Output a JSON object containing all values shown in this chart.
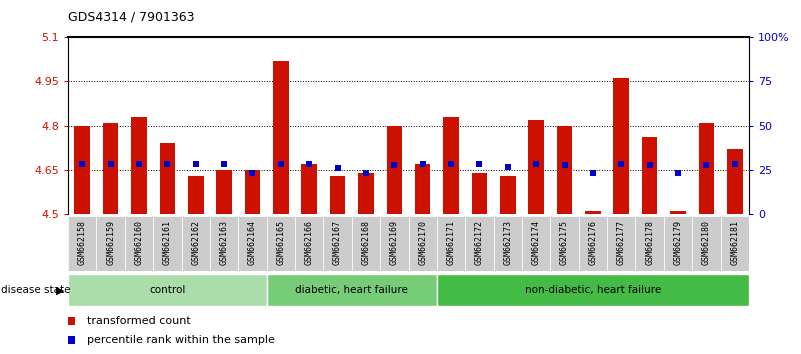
{
  "title": "GDS4314 / 7901363",
  "samples": [
    "GSM662158",
    "GSM662159",
    "GSM662160",
    "GSM662161",
    "GSM662162",
    "GSM662163",
    "GSM662164",
    "GSM662165",
    "GSM662166",
    "GSM662167",
    "GSM662168",
    "GSM662169",
    "GSM662170",
    "GSM662171",
    "GSM662172",
    "GSM662173",
    "GSM662174",
    "GSM662175",
    "GSM662176",
    "GSM662177",
    "GSM662178",
    "GSM662179",
    "GSM662180",
    "GSM662181"
  ],
  "red_values": [
    4.8,
    4.81,
    4.83,
    4.74,
    4.63,
    4.65,
    4.65,
    5.02,
    4.67,
    4.63,
    4.64,
    4.8,
    4.67,
    4.83,
    4.64,
    4.63,
    4.82,
    4.8,
    4.51,
    4.96,
    4.76,
    4.51,
    4.81,
    4.72
  ],
  "blue_values": [
    4.67,
    4.67,
    4.67,
    4.67,
    4.67,
    4.67,
    4.64,
    4.67,
    4.67,
    4.655,
    4.64,
    4.668,
    4.67,
    4.67,
    4.67,
    4.66,
    4.67,
    4.668,
    4.64,
    4.67,
    4.668,
    4.64,
    4.668,
    4.67
  ],
  "groups": [
    {
      "label": "control",
      "start": 0,
      "end": 7,
      "color": "#aaddaa"
    },
    {
      "label": "diabetic, heart failure",
      "start": 7,
      "end": 13,
      "color": "#77cc77"
    },
    {
      "label": "non-diabetic, heart failure",
      "start": 13,
      "end": 24,
      "color": "#44bb44"
    }
  ],
  "ylim": [
    4.5,
    5.1
  ],
  "y2lim": [
    0,
    100
  ],
  "yticks": [
    4.5,
    4.65,
    4.8,
    4.95,
    5.1
  ],
  "y2ticks": [
    0,
    25,
    50,
    75,
    100
  ],
  "ytick_labels": [
    "4.5",
    "4.65",
    "4.8",
    "4.95",
    "5.1"
  ],
  "y2tick_labels": [
    "0",
    "25",
    "50",
    "75",
    "100%"
  ],
  "bar_color": "#cc1100",
  "dot_color": "#0000cc",
  "bg_color": "#ffffff",
  "tick_area_color": "#cccccc",
  "dotted_lines": [
    4.65,
    4.8,
    4.95
  ]
}
